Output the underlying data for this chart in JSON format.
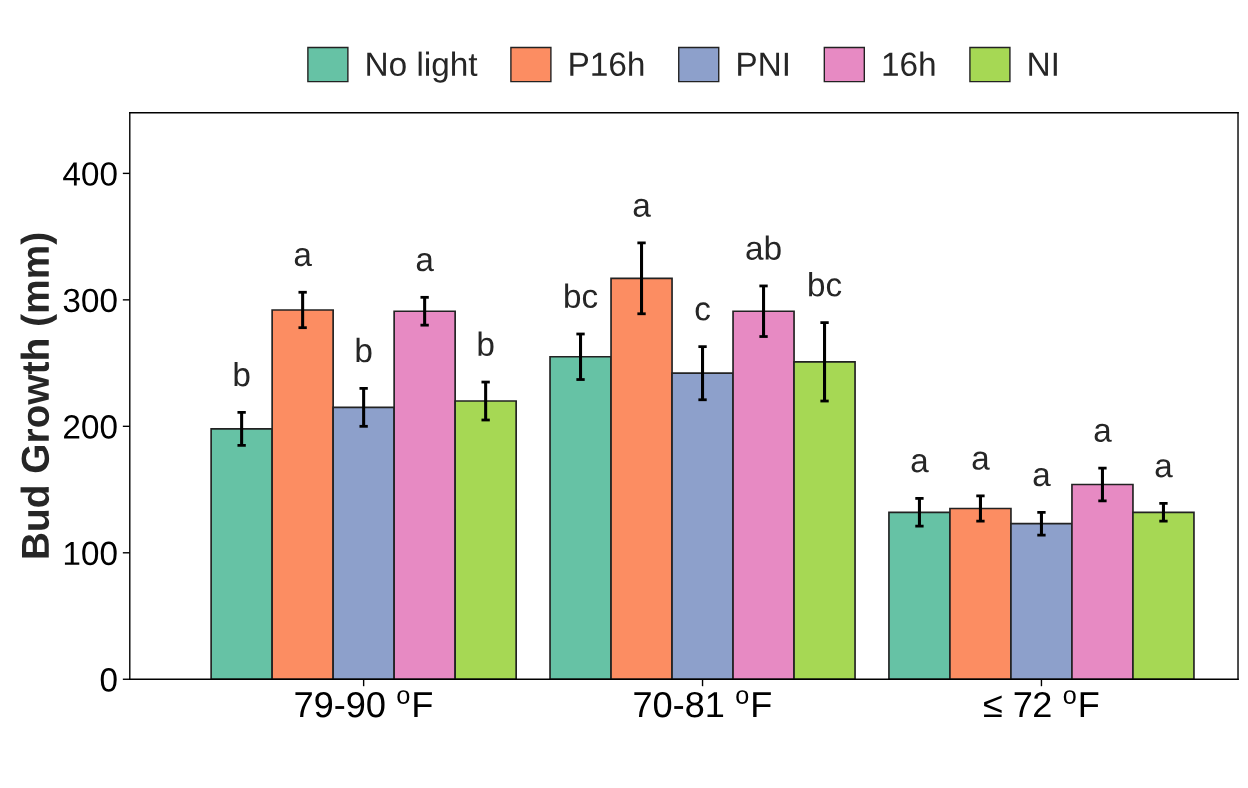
{
  "chart_data": {
    "type": "bar",
    "ylabel": "Bud Growth (mm)",
    "categories": [
      "79-90 $^{o}$F",
      "70-81 $^{o}$F",
      "≤ 72 $^{o}$F"
    ],
    "series": [
      {
        "name": "No light",
        "color": "#66c2a5",
        "values": [
          198,
          255,
          132
        ],
        "errors": [
          13,
          18,
          11
        ],
        "value_labels": [
          "b",
          "bc",
          "a"
        ]
      },
      {
        "name": "P16h",
        "color": "#fc8d62",
        "values": [
          292,
          317,
          135
        ],
        "errors": [
          14,
          28,
          10
        ],
        "value_labels": [
          "a",
          "a",
          "a"
        ]
      },
      {
        "name": "PNI",
        "color": "#8da0cb",
        "values": [
          215,
          242,
          123
        ],
        "errors": [
          15,
          21,
          9
        ],
        "value_labels": [
          "b",
          "c",
          "a"
        ]
      },
      {
        "name": "16h",
        "color": "#e78ac3",
        "values": [
          291,
          291,
          154
        ],
        "errors": [
          11,
          20,
          13
        ],
        "value_labels": [
          "a",
          "ab",
          "a"
        ]
      },
      {
        "name": "NI",
        "color": "#a6d854",
        "values": [
          220,
          251,
          132
        ],
        "errors": [
          15,
          31,
          7
        ],
        "value_labels": [
          "b",
          "bc",
          "a"
        ]
      }
    ],
    "ylim": [
      0,
      448
    ],
    "yticks": [
      0,
      100,
      200,
      300,
      400
    ],
    "grid": false,
    "legend": "top"
  }
}
